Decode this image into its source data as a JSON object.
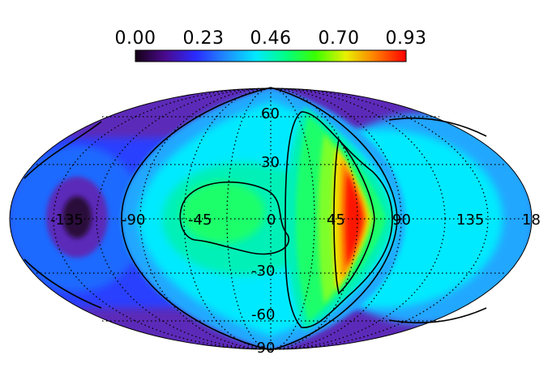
{
  "colorbar": {
    "tick_labels": [
      "0.00",
      "0.23",
      "0.46",
      "0.70",
      "0.93"
    ],
    "colormap": [
      "#150015",
      "#4a0a8e",
      "#2a2aff",
      "#1f8bff",
      "#00e8ff",
      "#00ff84",
      "#3cff00",
      "#e8f000",
      "#ff7a00",
      "#ff0000"
    ]
  },
  "map": {
    "projection": "Mollweide (all-sky)",
    "grid": true,
    "longitude_labels": [
      "-135",
      "-90",
      "-45",
      "0",
      "45",
      "90",
      "135",
      "18"
    ],
    "latitude_labels": [
      "60",
      "30",
      "-30",
      "-60",
      "-90"
    ],
    "field_colors": {
      "dark_core": "#2a0a3a",
      "purple": "#5b2bb8",
      "dark_blue": "#2a40ff",
      "blue": "#1f6bff",
      "light_blue": "#22a7ff",
      "cyan": "#00eaff",
      "aqua": "#00f0b8",
      "green": "#1dff6a",
      "lime": "#7dff2a",
      "yellow": "#f0e000",
      "orange": "#ff8a00",
      "red": "#ff1400"
    }
  }
}
